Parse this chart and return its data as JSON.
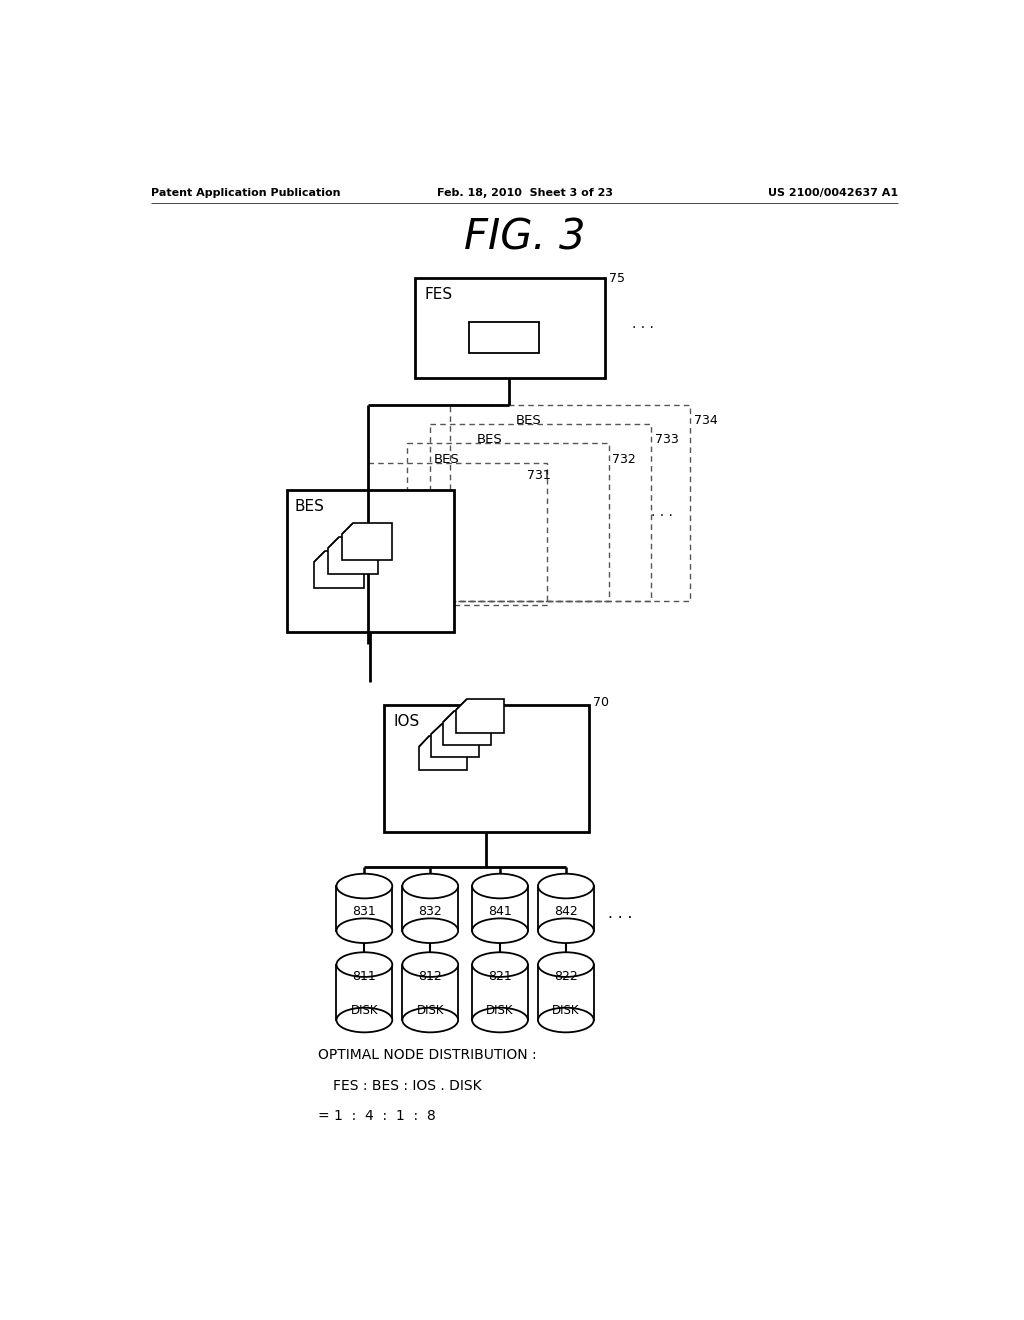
{
  "title": "FIG. 3",
  "header_left": "Patent Application Publication",
  "header_mid": "Feb. 18, 2010  Sheet 3 of 23",
  "header_right": "US 2100/0042637 A1",
  "bg_color": "#ffffff",
  "footer_line1": "OPTIMAL NODE DISTRIBUTION :",
  "footer_line2": "FES : BES : IOS . DISK",
  "footer_line3": "= 1  :  4  :  1  :  8"
}
